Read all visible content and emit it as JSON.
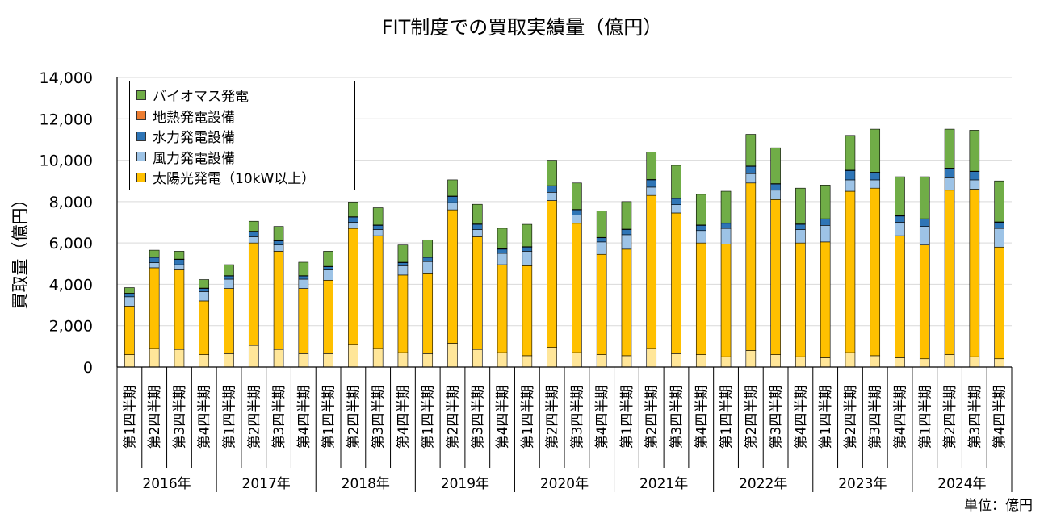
{
  "chart_data": {
    "type": "bar",
    "stacked": true,
    "title": "FIT制度での買取実績量（億円）",
    "ylabel": "買取量（億円）",
    "unit_note": "単位：億円",
    "ylim": [
      0,
      14000
    ],
    "yticks": [
      "0",
      "2,000",
      "4,000",
      "6,000",
      "8,000",
      "10,000",
      "12,000",
      "14,000"
    ],
    "grid": true,
    "legend_position": "top-left",
    "quarters": [
      "第1四半期",
      "第2四半期",
      "第3四半期",
      "第4四半期"
    ],
    "years": [
      "2016年",
      "2017年",
      "2018年",
      "2019年",
      "2020年",
      "2021年",
      "2022年",
      "2023年",
      "2024年"
    ],
    "legend": [
      {
        "name": "バイオマス発電",
        "color": "#70AD47"
      },
      {
        "name": "地熱発電設備",
        "color": "#ED7D31"
      },
      {
        "name": "水力発電設備",
        "color": "#2E75B6"
      },
      {
        "name": "風力発電設備",
        "color": "#9DC3E6"
      },
      {
        "name": "太陽光発電（10kW以上）",
        "color": "#FFC000"
      }
    ],
    "lower_segment_color": "#FFE699",
    "series": [
      {
        "name": "",
        "color": "#FFE699",
        "values": [
          600,
          900,
          850,
          600,
          650,
          1050,
          850,
          650,
          650,
          1100,
          900,
          700,
          650,
          1150,
          850,
          700,
          550,
          950,
          700,
          600,
          550,
          900,
          650,
          600,
          500,
          800,
          600,
          500,
          450,
          700,
          550,
          450,
          400,
          600,
          500,
          400
        ]
      },
      {
        "name": "太陽光発電（10kW以上）",
        "color": "#FFC000",
        "values": [
          2350,
          3900,
          3850,
          2600,
          3150,
          4950,
          4750,
          3150,
          3550,
          5600,
          5450,
          3750,
          3900,
          6450,
          5450,
          4250,
          4350,
          7100,
          6250,
          4850,
          5150,
          7400,
          6800,
          5400,
          5450,
          8100,
          7500,
          5500,
          5600,
          7800,
          8100,
          5900,
          5500,
          7950,
          8100,
          5400
        ]
      },
      {
        "name": "風力発電設備",
        "color": "#9DC3E6",
        "values": [
          450,
          250,
          250,
          450,
          450,
          300,
          300,
          450,
          500,
          300,
          300,
          450,
          550,
          350,
          350,
          550,
          700,
          400,
          400,
          600,
          700,
          400,
          400,
          600,
          750,
          450,
          450,
          650,
          800,
          550,
          400,
          650,
          900,
          600,
          450,
          900
        ]
      },
      {
        "name": "水力発電設備",
        "color": "#2E75B6",
        "values": [
          150,
          250,
          250,
          150,
          150,
          250,
          200,
          150,
          150,
          250,
          200,
          150,
          200,
          300,
          250,
          200,
          200,
          300,
          250,
          200,
          250,
          350,
          300,
          250,
          250,
          350,
          300,
          250,
          300,
          450,
          350,
          300,
          350,
          450,
          400,
          300
        ]
      },
      {
        "name": "地熱発電設備",
        "color": "#ED7D31",
        "values": [
          20,
          20,
          20,
          20,
          20,
          20,
          20,
          20,
          20,
          20,
          20,
          20,
          20,
          20,
          20,
          20,
          20,
          20,
          20,
          20,
          20,
          20,
          20,
          20,
          20,
          20,
          20,
          20,
          20,
          20,
          20,
          20,
          20,
          20,
          20,
          20
        ]
      },
      {
        "name": "バイオマス発電",
        "color": "#70AD47",
        "values": [
          270,
          330,
          380,
          410,
          530,
          480,
          680,
          650,
          730,
          710,
          830,
          830,
          830,
          780,
          950,
          990,
          1080,
          1230,
          1280,
          1280,
          1330,
          1330,
          1580,
          1480,
          1530,
          1530,
          1730,
          1730,
          1630,
          1680,
          2080,
          1880,
          2030,
          1880,
          1980,
          1980
        ]
      }
    ]
  }
}
